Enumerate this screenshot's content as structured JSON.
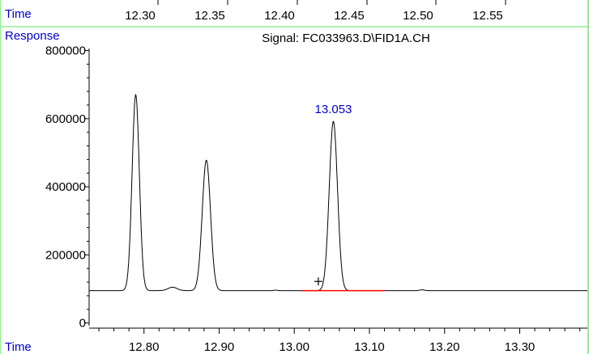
{
  "chart_data": {
    "type": "line",
    "title": "Signal: FC033963.D\\FID1A.CH",
    "ylabel": "Response",
    "xlabel": "Time",
    "top_axis": {
      "label": "Time",
      "ticks": [
        "12.30",
        "12.35",
        "12.40",
        "12.45",
        "12.50",
        "12.55"
      ]
    },
    "x_ticks": [
      "12.80",
      "12.90",
      "13.00",
      "13.10",
      "13.20",
      "13.30"
    ],
    "y_ticks": [
      "0",
      "200000",
      "400000",
      "600000",
      "800000"
    ],
    "xlim": [
      12.727,
      13.39
    ],
    "ylim": [
      -8000,
      806000
    ],
    "baseline": 95000,
    "peaks": [
      {
        "rt": 12.789,
        "height": 670000,
        "width": 0.0048,
        "label": ""
      },
      {
        "rt": 12.838,
        "height": 105000,
        "width": 0.006,
        "label": ""
      },
      {
        "rt": 12.883,
        "height": 478000,
        "width": 0.0055,
        "label": ""
      },
      {
        "rt": 13.052,
        "height": 592000,
        "width": 0.0055,
        "label": "13.053"
      }
    ],
    "integration_baseline": {
      "x_start": 13.01,
      "x_end": 13.12,
      "y": 95000
    },
    "integration_marker": {
      "x": 13.032,
      "y": 122000
    },
    "colors": {
      "trace": "#000000",
      "baseline": "#ff0000",
      "annotation": "#0000cc",
      "frame": "#90ee90",
      "axis": "#000000"
    }
  }
}
